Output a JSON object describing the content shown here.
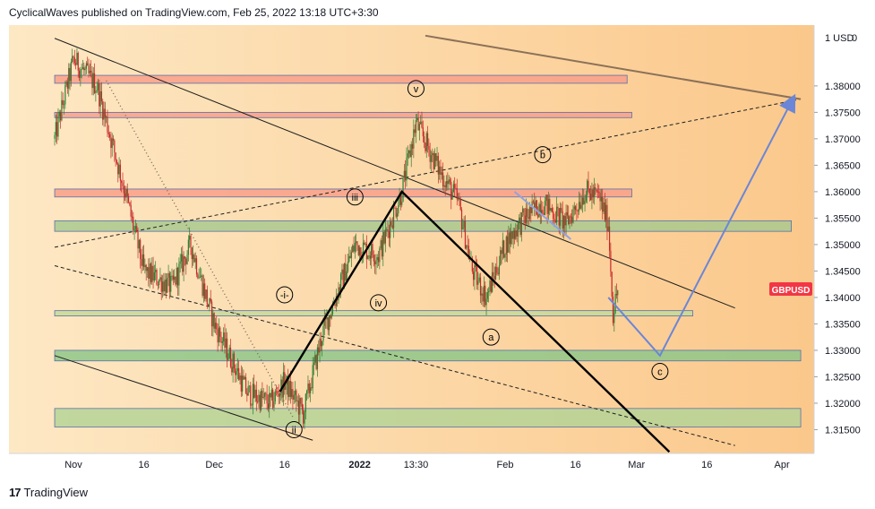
{
  "header": {
    "text": "CyclicalWaves published on TradingView.com, Feb 25, 2022 13:18 UTC+3:30"
  },
  "footer": {
    "logo": "17",
    "brand": "TradingView"
  },
  "chart_data": {
    "type": "candlestick",
    "symbol": "GBPUSD",
    "last_price": 1.3415,
    "price_scale_label": "1 USD",
    "price_scale_suffix": "0",
    "ylim": [
      1.3105,
      1.3915
    ],
    "y_ticks": [
      "1.38000",
      "1.37500",
      "1.37000",
      "1.36500",
      "1.36000",
      "1.35500",
      "1.35000",
      "1.34500",
      "1.34000",
      "1.33500",
      "1.33000",
      "1.32500",
      "1.32000",
      "1.31500"
    ],
    "x_ticks": [
      "Nov",
      "16",
      "Dec",
      "16",
      "2022",
      "13:30",
      "Feb",
      "16",
      "Mar",
      "16",
      "Apr"
    ],
    "x_tick_dates": [
      "2021-11-01",
      "2021-11-16",
      "2021-12-01",
      "2021-12-16",
      "2022-01-01",
      "2022-01-13",
      "2022-02-01",
      "2022-02-16",
      "2022-03-01",
      "2022-03-16",
      "2022-04-01"
    ],
    "wave_labels": [
      {
        "text": "v",
        "date": "2022-01-13",
        "price": 1.3795
      },
      {
        "text": "iii",
        "date": "2021-12-31",
        "price": 1.359
      },
      {
        "text": "-i-",
        "date": "2021-12-16",
        "price": 1.3405
      },
      {
        "text": "iv",
        "date": "2022-01-05",
        "price": 1.339
      },
      {
        "text": "ii",
        "date": "2021-12-18",
        "price": 1.315
      },
      {
        "text": "b",
        "date": "2022-02-09",
        "price": 1.367
      },
      {
        "text": "a",
        "date": "2022-01-29",
        "price": 1.3325
      },
      {
        "text": "c",
        "date": "2022-03-06",
        "price": 1.326
      }
    ],
    "zones": [
      {
        "color": "#f8a08a",
        "from": 1.3805,
        "to": 1.382,
        "start": "2021-10-28",
        "end": "2022-02-27"
      },
      {
        "color": "#f8a08a",
        "from": 1.374,
        "to": 1.375,
        "start": "2021-10-28",
        "end": "2022-02-28"
      },
      {
        "color": "#f8a08a",
        "from": 1.359,
        "to": 1.3605,
        "start": "2021-10-28",
        "end": "2022-02-28"
      },
      {
        "color": "#a9c98f",
        "from": 1.3525,
        "to": 1.3545,
        "start": "2021-10-28",
        "end": "2022-04-03"
      },
      {
        "color": "#c8d995",
        "from": 1.3365,
        "to": 1.3375,
        "start": "2021-10-28",
        "end": "2022-03-13"
      },
      {
        "color": "#8fc789",
        "from": 1.328,
        "to": 1.33,
        "start": "2021-10-28",
        "end": "2022-04-05"
      },
      {
        "color": "#b5d396",
        "from": 1.3155,
        "to": 1.319,
        "start": "2021-10-28",
        "end": "2022-04-05"
      }
    ],
    "colors": {
      "up": "#2e7d32",
      "down": "#c62828",
      "background_light": "#fde8c4",
      "background_dark": "#fbc88b",
      "badge": "#f23645"
    }
  }
}
